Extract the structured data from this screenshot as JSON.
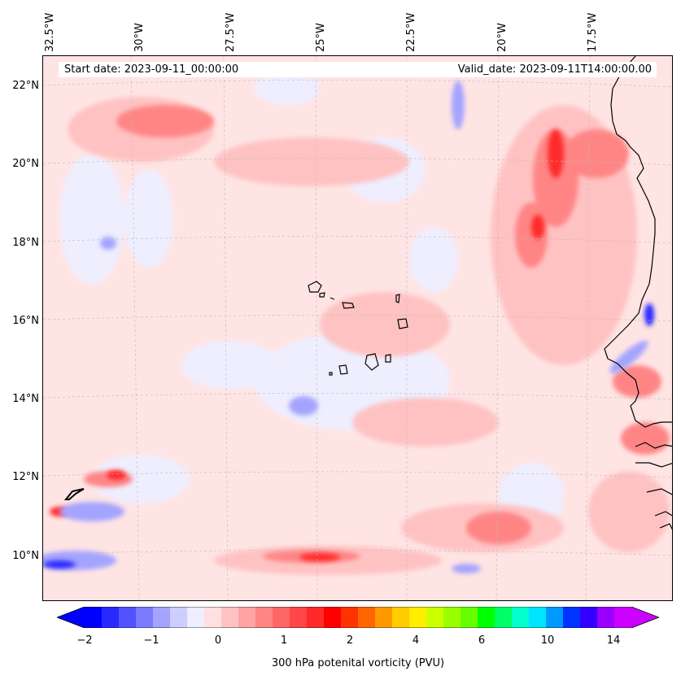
{
  "header": {
    "start_date": "Start date: 2023-09-11_00:00:00",
    "valid_date": "Valid_date: 2023-09-11T14:00:00.00"
  },
  "axes": {
    "longitude_labels": [
      "32.5°W",
      "30°W",
      "27.5°W",
      "25°W",
      "22.5°W",
      "20°W",
      "17.5°W"
    ],
    "latitude_labels": [
      "22°N",
      "20°N",
      "18°N",
      "16°N",
      "14°N",
      "12°N",
      "10°N"
    ]
  },
  "colorbar": {
    "label": "300 hPa potenital vorticity (PVU)",
    "tick_labels": [
      "−2",
      "−1",
      "0",
      "1",
      "2",
      "4",
      "6",
      "10",
      "14"
    ],
    "colors": [
      "#0000ff",
      "#2929ff",
      "#5252ff",
      "#7b7bff",
      "#a4a4ff",
      "#cdcdff",
      "#eeeeff",
      "#ffe0e0",
      "#ffc2c2",
      "#ffa3a3",
      "#ff8585",
      "#ff6666",
      "#ff4747",
      "#ff2929",
      "#ff0000",
      "#ff3300",
      "#ff6600",
      "#ff9900",
      "#ffcc00",
      "#ffee00",
      "#ccff00",
      "#99ff00",
      "#66ff00",
      "#00ff00",
      "#00ff66",
      "#00ffcc",
      "#00e5ff",
      "#0099ff",
      "#0033ff",
      "#3300ff",
      "#9900ff",
      "#cc00ff"
    ]
  }
}
